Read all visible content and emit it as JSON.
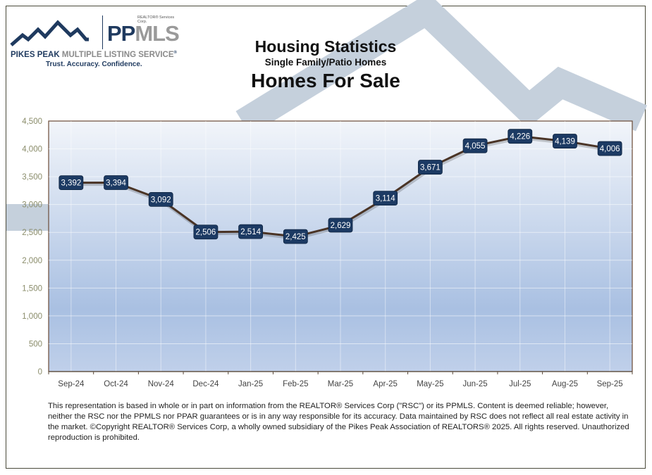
{
  "logo": {
    "corp_label": "REALTOR® Services Corp.",
    "brand_pp": "PP",
    "brand_mls": "MLS",
    "name_bold": "PIKES PEAK ",
    "name_gray": "MULTIPLE LISTING SERVICE",
    "trademark": "®",
    "tagline": "Trust. Accuracy. Confidence."
  },
  "header": {
    "title": "Housing Statistics",
    "subtitle": "Single Family/Patio Homes",
    "metric": "Homes For Sale"
  },
  "colors": {
    "brand_navy": "#1f3a5f",
    "label_box": "#1c3a63",
    "line": "#4a3426",
    "watermark": "#c5d0dc",
    "plot_top": "#f2f5fa",
    "plot_bottom": "#a9c0e2",
    "axis_tick_text": "#8a8c6a"
  },
  "chart_data": {
    "type": "line",
    "title": "Homes For Sale",
    "subtitle": "Housing Statistics - Single Family/Patio Homes",
    "xlabel": "",
    "ylabel": "",
    "categories": [
      "Sep-24",
      "Oct-24",
      "Nov-24",
      "Dec-24",
      "Jan-25",
      "Feb-25",
      "Mar-25",
      "Apr-25",
      "May-25",
      "Jun-25",
      "Jul-25",
      "Aug-25",
      "Sep-25"
    ],
    "series": [
      {
        "name": "Homes For Sale",
        "values": [
          3392,
          3394,
          3092,
          2506,
          2514,
          2425,
          2629,
          3114,
          3671,
          4055,
          4226,
          4139,
          4006
        ]
      }
    ],
    "data_labels": [
      "3,392",
      "3,394",
      "3,092",
      "2,506",
      "2,514",
      "2,425",
      "2,629",
      "3,114",
      "3,671",
      "4,055",
      "4,226",
      "4,139",
      "4,006"
    ],
    "ylim": [
      0,
      4500
    ],
    "yticks": [
      "0",
      "500",
      "1,000",
      "1,500",
      "2,000",
      "2,500",
      "3,000",
      "3,500",
      "4,000",
      "4,500"
    ],
    "grid": true,
    "legend": "none"
  },
  "disclaimer": "This representation is based in whole or in part on information from the REALTOR® Services Corp (\"RSC\") or its PPMLS. Content is deemed reliable; however, neither the RSC nor the PPMLS nor PPAR guarantees or is in any way responsible for its accuracy. Data maintained by RSC does not reflect all real estate activity in the market. ©Copyright REALTOR® Services Corp, a wholly owned subsidiary of the Pikes Peak Association of REALTORS® 2025. All rights reserved. Unauthorized reproduction is prohibited."
}
